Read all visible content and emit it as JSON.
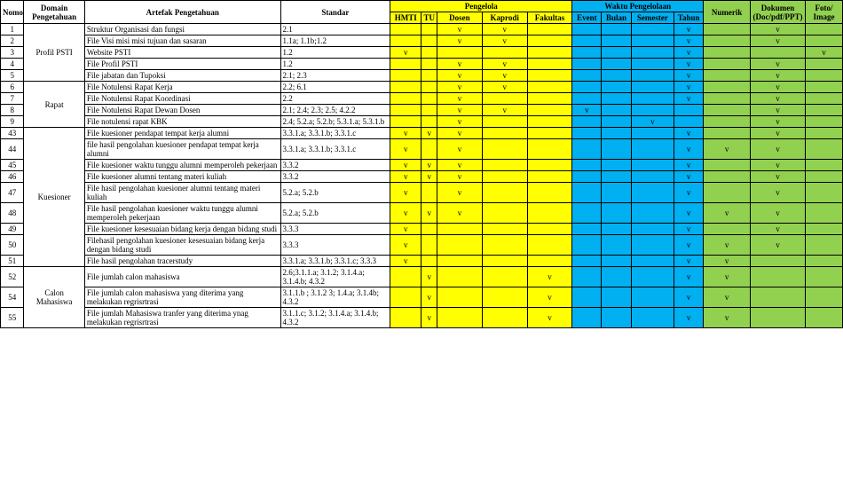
{
  "headers": {
    "nomor": "Nomor",
    "domain": "Domain Pengetahuan",
    "artefak": "Artefak Pengetahuan",
    "standar": "Standar",
    "pengelola": "Pengelola",
    "waktu": "Waktu Pengelolaan",
    "numerik": "Numerik",
    "dokumen": "Dokumen (Doc/pdf/PPT)",
    "foto": "Foto/ Image",
    "hmti": "HMTI",
    "tu": "TU",
    "dosen": "Dosen",
    "kaprodi": "Kaprodi",
    "fakultas": "Fakultas",
    "event": "Event",
    "bulan": "Bulan",
    "semester": "Semester",
    "tahun": "Tahun"
  },
  "domains": {
    "d1": "Profil PSTI",
    "d2": "Rapat",
    "d3": "Kuesioner",
    "d4": "Calon Mahasiswa"
  },
  "rows": [
    {
      "n": "1",
      "art": "Struktur Organisasi dan fungsi",
      "std": "2.1",
      "hmti": "",
      "tu": "",
      "dosen": "v",
      "kaprodi": "v",
      "fak": "",
      "ev": "",
      "bul": "",
      "sem": "",
      "th": "v",
      "num": "",
      "doc": "v",
      "foto": ""
    },
    {
      "n": "2",
      "art": "File Visi misi misi tujuan dan sasaran",
      "std": "1.1a; 1.1b;1.2",
      "hmti": "",
      "tu": "",
      "dosen": "v",
      "kaprodi": "v",
      "fak": "",
      "ev": "",
      "bul": "",
      "sem": "",
      "th": "v",
      "num": "",
      "doc": "v",
      "foto": ""
    },
    {
      "n": "3",
      "art": "Website PSTI",
      "std": "1.2",
      "hmti": "v",
      "tu": "",
      "dosen": "",
      "kaprodi": "",
      "fak": "",
      "ev": "",
      "bul": "",
      "sem": "",
      "th": "v",
      "num": "",
      "doc": "",
      "foto": "v"
    },
    {
      "n": "4",
      "art": "File Profil PSTI",
      "std": "1.2",
      "hmti": "",
      "tu": "",
      "dosen": "v",
      "kaprodi": "v",
      "fak": "",
      "ev": "",
      "bul": "",
      "sem": "",
      "th": "v",
      "num": "",
      "doc": "v",
      "foto": ""
    },
    {
      "n": "5",
      "art": "File jabatan dan Tupoksi",
      "std": "2.1; 2.3",
      "hmti": "",
      "tu": "",
      "dosen": "v",
      "kaprodi": "v",
      "fak": "",
      "ev": "",
      "bul": "",
      "sem": "",
      "th": "v",
      "num": "",
      "doc": "v",
      "foto": ""
    },
    {
      "n": "6",
      "art": "File Notulensi Rapat Kerja",
      "std": "2.2; 6.1",
      "hmti": "",
      "tu": "",
      "dosen": "v",
      "kaprodi": "v",
      "fak": "",
      "ev": "",
      "bul": "",
      "sem": "",
      "th": "v",
      "num": "",
      "doc": "v",
      "foto": ""
    },
    {
      "n": "7",
      "art": "File Notulensi Rapat Koordinasi",
      "std": "2.2",
      "hmti": "",
      "tu": "",
      "dosen": "v",
      "kaprodi": "",
      "fak": "",
      "ev": "",
      "bul": "",
      "sem": "",
      "th": "v",
      "num": "",
      "doc": "v",
      "foto": ""
    },
    {
      "n": "8",
      "art": "File Notulensi Rapat Dewan Dosen",
      "std": "2.1; 2.4; 2.3; 2.5; 4.2.2",
      "hmti": "",
      "tu": "",
      "dosen": "v",
      "kaprodi": "v",
      "fak": "",
      "ev": "v",
      "bul": "",
      "sem": "",
      "th": "",
      "num": "",
      "doc": "v",
      "foto": ""
    },
    {
      "n": "9",
      "art": "File notulensi rapat KBK",
      "std": "2.4; 5.2.a; 5.2.b; 5.3.1.a; 5.3.1.b",
      "hmti": "",
      "tu": "",
      "dosen": "v",
      "kaprodi": "",
      "fak": "",
      "ev": "",
      "bul": "",
      "sem": "v",
      "th": "",
      "num": "",
      "doc": "v",
      "foto": ""
    },
    {
      "n": "43",
      "art": "File kuesioner pendapat tempat kerja alumni",
      "std": "3.3.1.a; 3.3.1.b; 3.3.1.c",
      "hmti": "v",
      "tu": "v",
      "dosen": "v",
      "kaprodi": "",
      "fak": "",
      "ev": "",
      "bul": "",
      "sem": "",
      "th": "v",
      "num": "",
      "doc": "v",
      "foto": ""
    },
    {
      "n": "44",
      "art": "file hasil pengolahan kuesioner pendapat tempat kerja alumni",
      "std": "3.3.1.a; 3.3.1.b; 3.3.1.c",
      "hmti": "v",
      "tu": "",
      "dosen": "v",
      "kaprodi": "",
      "fak": "",
      "ev": "",
      "bul": "",
      "sem": "",
      "th": "v",
      "num": "v",
      "doc": "v",
      "foto": ""
    },
    {
      "n": "45",
      "art": "File kuesioner waktu tunggu alumni memperoleh pekerjaan",
      "std": "3.3.2",
      "hmti": "v",
      "tu": "v",
      "dosen": "v",
      "kaprodi": "",
      "fak": "",
      "ev": "",
      "bul": "",
      "sem": "",
      "th": "v",
      "num": "",
      "doc": "v",
      "foto": ""
    },
    {
      "n": "46",
      "art": "File kuesioner alumni tentang materi kuliah",
      "std": "3.3.2",
      "hmti": "v",
      "tu": "v",
      "dosen": "v",
      "kaprodi": "",
      "fak": "",
      "ev": "",
      "bul": "",
      "sem": "",
      "th": "v",
      "num": "",
      "doc": "v",
      "foto": ""
    },
    {
      "n": "47",
      "art": "File hasil pengolahan kuesioner alumni tentang materi kuliah",
      "std": "5.2.a; 5.2.b",
      "hmti": "v",
      "tu": "",
      "dosen": "v",
      "kaprodi": "",
      "fak": "",
      "ev": "",
      "bul": "",
      "sem": "",
      "th": "v",
      "num": "",
      "doc": "v",
      "foto": ""
    },
    {
      "n": "48",
      "art": "File hasil pengolahan kuesioner waktu tunggu alumni memperoleh pekerjaan",
      "std": "5.2.a; 5.2.b",
      "hmti": "v",
      "tu": "v",
      "dosen": "v",
      "kaprodi": "",
      "fak": "",
      "ev": "",
      "bul": "",
      "sem": "",
      "th": "v",
      "num": "v",
      "doc": "v",
      "foto": ""
    },
    {
      "n": "49",
      "art": "File kuesioner kesesuaian bidang kerja dengan bidang studi",
      "std": "3.3.3",
      "hmti": "v",
      "tu": "",
      "dosen": "",
      "kaprodi": "",
      "fak": "",
      "ev": "",
      "bul": "",
      "sem": "",
      "th": "v",
      "num": "",
      "doc": "v",
      "foto": ""
    },
    {
      "n": "50",
      "art": "Filehasil pengolahan  kuesioner kesesuaian bidang kerja dengan bidang studi",
      "std": "3.3.3",
      "hmti": "v",
      "tu": "",
      "dosen": "",
      "kaprodi": "",
      "fak": "",
      "ev": "",
      "bul": "",
      "sem": "",
      "th": "v",
      "num": "v",
      "doc": "v",
      "foto": ""
    },
    {
      "n": "51",
      "art": "File hasil pengolahan tracerstudy",
      "std": "3.3.1.a; 3.3.1.b; 3.3.1.c; 3.3.3",
      "hmti": "v",
      "tu": "",
      "dosen": "",
      "kaprodi": "",
      "fak": "",
      "ev": "",
      "bul": "",
      "sem": "",
      "th": "v",
      "num": "v",
      "doc": "",
      "foto": ""
    },
    {
      "n": "52",
      "art": "File jumlah calon mahasiswa",
      "std": "2.6;3.1.1.a; 3.1.2; 3.1.4.a; 3.1.4.b; 4.3.2",
      "hmti": "",
      "tu": "v",
      "dosen": "",
      "kaprodi": "",
      "fak": "v",
      "ev": "",
      "bul": "",
      "sem": "",
      "th": "v",
      "num": "v",
      "doc": "",
      "foto": ""
    },
    {
      "n": "54",
      "art": "File jumlah calon mahasiswa yang diterima yang melakukan regrisrtrasi",
      "std": "3.1.1.b ; 3.1.2 3; 1.4.a; 3.1.4b; 4.3.2",
      "hmti": "",
      "tu": "v",
      "dosen": "",
      "kaprodi": "",
      "fak": "v",
      "ev": "",
      "bul": "",
      "sem": "",
      "th": "v",
      "num": "v",
      "doc": "",
      "foto": ""
    },
    {
      "n": "55",
      "art": "File jumlah Mahasiswa tranfer yang diterima ynag melakukan regrisrtrasi",
      "std": "3.1.1.c; 3.1.2; 3.1.4.a; 3.1.4.b; 4.3.2",
      "hmti": "",
      "tu": "v",
      "dosen": "",
      "kaprodi": "",
      "fak": "v",
      "ev": "",
      "bul": "",
      "sem": "",
      "th": "v",
      "num": "v",
      "doc": "",
      "foto": ""
    }
  ],
  "colors": {
    "yellow": "#ffff00",
    "blue": "#00b0f0",
    "green": "#92d050"
  }
}
